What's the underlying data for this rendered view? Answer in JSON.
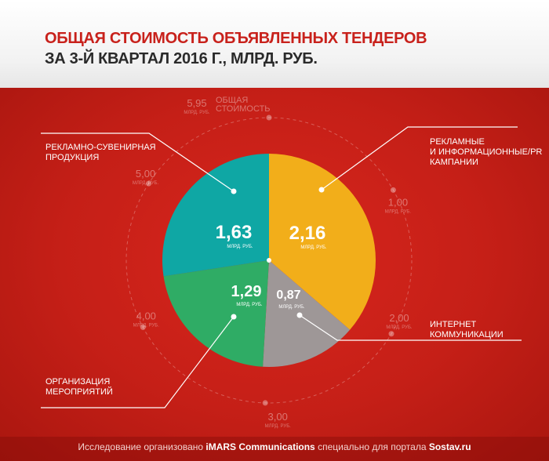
{
  "title": {
    "line1": "ОБЩАЯ СТОИМОСТЬ ОБЪЯВЛЕННЫХ ТЕНДЕРОВ",
    "line2": "ЗА 3-Й КВАРТАЛ 2016 Г., МЛРД. РУБ."
  },
  "footer": {
    "prefix": "Исследование организовано ",
    "org": "iMARS Communications",
    "middle": " специально для портала ",
    "portal": "Sostav.ru"
  },
  "colors": {
    "background": "#c8211b",
    "advertising_campaigns": "#f2ae1a",
    "internet": "#9e9797",
    "events": "#2fac65",
    "souvenirs": "#0fa7a4"
  },
  "chart_data": {
    "type": "pie",
    "total": 5.95,
    "total_value_label": "5,95",
    "total_label": "ОБЩАЯ\nСТОИМОСТЬ",
    "slices": [
      {
        "label": "РЕКЛАМНЫЕ\nИ ИНФОРМАЦИОННЫЕ/PR\nКАМПАНИИ",
        "value": 2.16,
        "value_label": "2,16",
        "unit": "МЛРД. РУБ."
      },
      {
        "label": "ИНТЕРНЕТ\nКОММУНИКАЦИИ",
        "value": 0.87,
        "value_label": "0,87",
        "unit": "МЛРД. РУБ."
      },
      {
        "label": "ОРГАНИЗАЦИЯ\nМЕРОПРИЯТИЙ",
        "value": 1.29,
        "value_label": "1,29",
        "unit": "МЛРД. РУБ."
      },
      {
        "label": "РЕКЛАМНО-СУВЕНИРНАЯ\nПРОДУКЦИЯ",
        "value": 1.63,
        "value_label": "1,63",
        "unit": "МЛРД. РУБ."
      }
    ],
    "scale_ticks": [
      {
        "value": 1.0,
        "label": "1,00",
        "unit": "МЛРД. РУБ."
      },
      {
        "value": 2.0,
        "label": "2,00",
        "unit": "МЛРД. РУБ."
      },
      {
        "value": 3.0,
        "label": "3,00",
        "unit": "МЛРД. РУБ."
      },
      {
        "value": 4.0,
        "label": "4,00",
        "unit": "МЛРД. РУБ."
      },
      {
        "value": 5.0,
        "label": "5,00",
        "unit": "МЛРД. РУБ."
      },
      {
        "value": 5.95,
        "label": "5,95",
        "unit": "МЛРД. РУБ."
      }
    ]
  }
}
